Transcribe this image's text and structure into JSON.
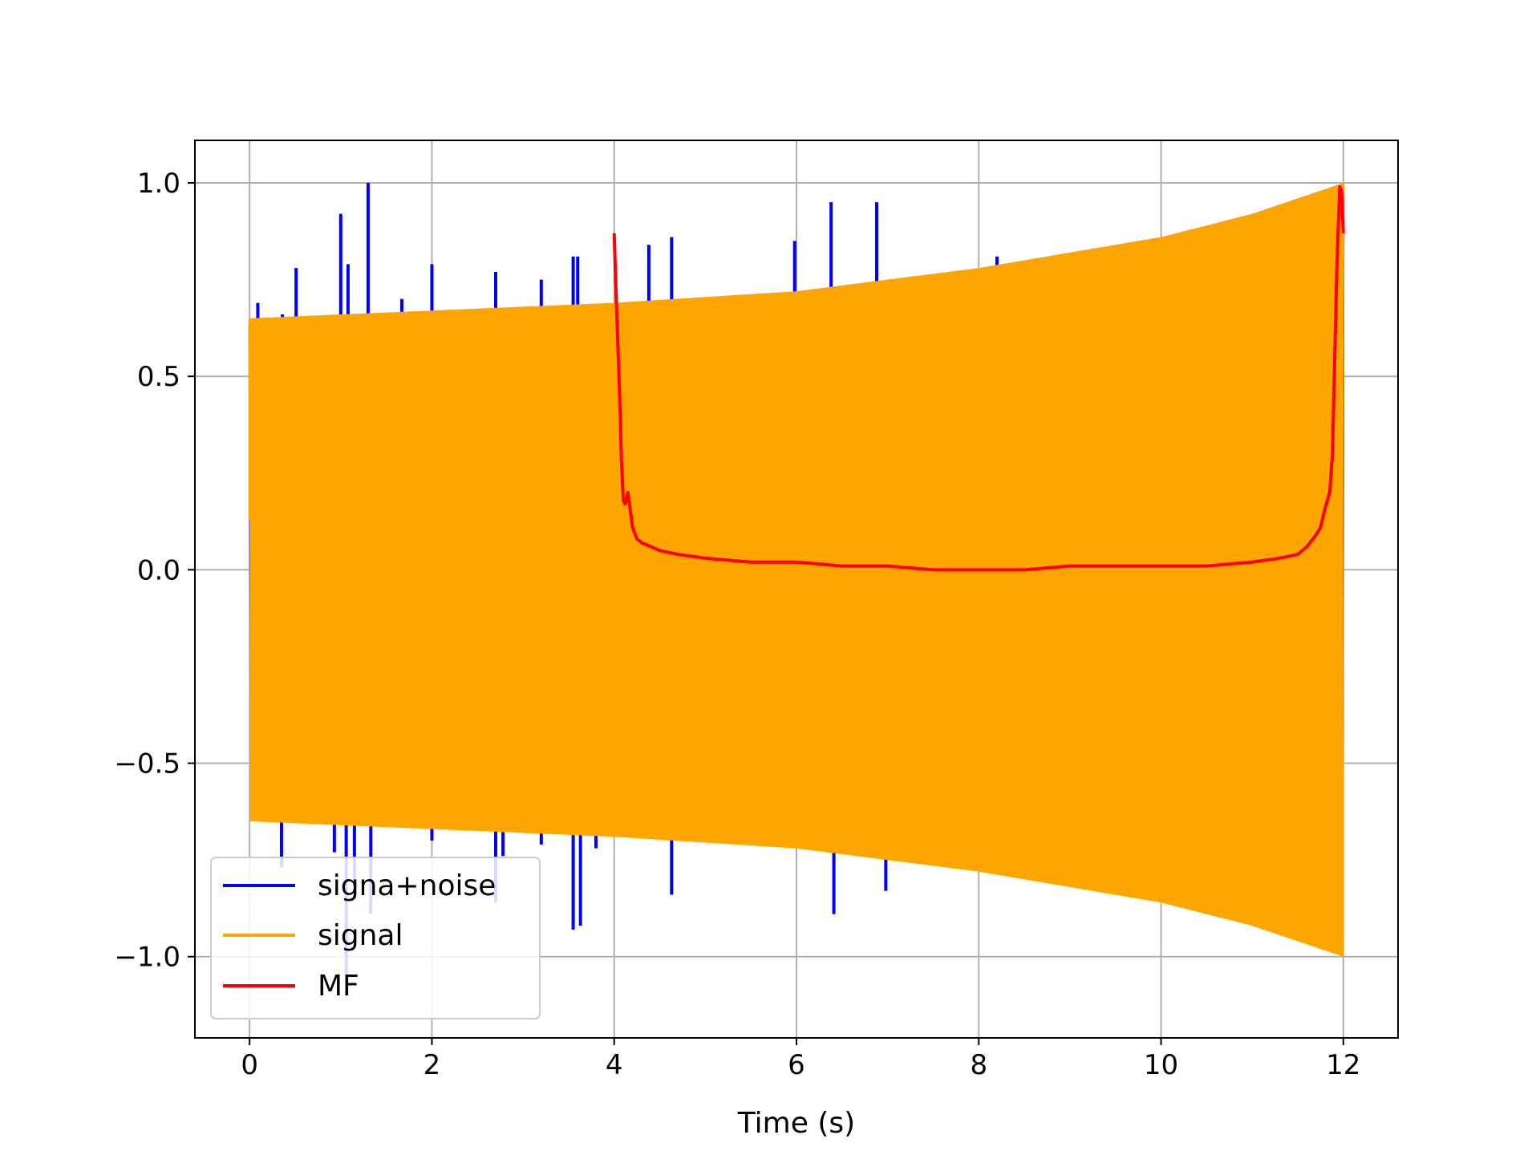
{
  "chart_data": {
    "type": "line",
    "title": "",
    "xlabel": "Time (s)",
    "ylabel": "",
    "xlim": [
      -0.6,
      12.6
    ],
    "ylim": [
      -1.21,
      1.11
    ],
    "grid": true,
    "legend_position": "lower-left",
    "x_ticks": [
      {
        "value": 0,
        "label": "0"
      },
      {
        "value": 2,
        "label": "2"
      },
      {
        "value": 4,
        "label": "4"
      },
      {
        "value": 6,
        "label": "6"
      },
      {
        "value": 8,
        "label": "8"
      },
      {
        "value": 10,
        "label": "10"
      },
      {
        "value": 12,
        "label": "12"
      }
    ],
    "y_ticks": [
      {
        "value": 1.0,
        "label": "1.0"
      },
      {
        "value": 0.5,
        "label": "0.5"
      },
      {
        "value": 0.0,
        "label": "0.0"
      },
      {
        "value": -0.5,
        "label": "−0.5"
      },
      {
        "value": -1.0,
        "label": "−1.0"
      }
    ],
    "series": [
      {
        "name": "signa+noise",
        "color": "#0000ff",
        "kind": "noisy_chirp",
        "x_range": [
          0,
          12
        ],
        "envelope": {
          "t": [
            0,
            2,
            4,
            6,
            8,
            10,
            11,
            12
          ],
          "amp": [
            0.65,
            0.67,
            0.69,
            0.72,
            0.78,
            0.86,
            0.92,
            1.0
          ]
        },
        "spikes": [
          {
            "x": 0.09,
            "y": 0.69
          },
          {
            "x": 0.36,
            "y": 0.66
          },
          {
            "x": 0.51,
            "y": 0.78
          },
          {
            "x": 0.35,
            "y": -0.77
          },
          {
            "x": 0.93,
            "y": -0.73
          },
          {
            "x": 1.0,
            "y": 0.92
          },
          {
            "x": 1.08,
            "y": 0.79
          },
          {
            "x": 1.06,
            "y": -1.05
          },
          {
            "x": 1.15,
            "y": -0.85
          },
          {
            "x": 1.3,
            "y": 1.0
          },
          {
            "x": 1.33,
            "y": -0.89
          },
          {
            "x": 1.67,
            "y": 0.7
          },
          {
            "x": 2.0,
            "y": 0.79
          },
          {
            "x": 2.0,
            "y": -0.7
          },
          {
            "x": 2.7,
            "y": 0.77
          },
          {
            "x": 2.7,
            "y": -0.86
          },
          {
            "x": 2.78,
            "y": -0.74
          },
          {
            "x": 3.2,
            "y": 0.75
          },
          {
            "x": 3.2,
            "y": -0.71
          },
          {
            "x": 3.55,
            "y": 0.81
          },
          {
            "x": 3.6,
            "y": 0.81
          },
          {
            "x": 3.55,
            "y": -0.93
          },
          {
            "x": 3.63,
            "y": -0.92
          },
          {
            "x": 3.8,
            "y": -0.72
          },
          {
            "x": 4.38,
            "y": 0.84
          },
          {
            "x": 4.63,
            "y": 0.86
          },
          {
            "x": 4.63,
            "y": -0.84
          },
          {
            "x": 5.98,
            "y": 0.85
          },
          {
            "x": 6.38,
            "y": 0.95
          },
          {
            "x": 6.41,
            "y": -0.89
          },
          {
            "x": 6.88,
            "y": 0.95
          },
          {
            "x": 6.98,
            "y": -0.83
          },
          {
            "x": 8.2,
            "y": 0.81
          }
        ]
      },
      {
        "name": "signal",
        "color": "#ffa500",
        "kind": "chirp_band",
        "x_range": [
          0,
          12
        ],
        "start_value": 0.13,
        "envelope": {
          "t": [
            0,
            2,
            4,
            6,
            8,
            10,
            11,
            12
          ],
          "amp": [
            0.65,
            0.67,
            0.69,
            0.72,
            0.78,
            0.86,
            0.92,
            1.0
          ]
        }
      },
      {
        "name": "MF",
        "color": "#ff0000",
        "kind": "line",
        "x": [
          4.0,
          4.03,
          4.06,
          4.08,
          4.1,
          4.12,
          4.15,
          4.2,
          4.25,
          4.3,
          4.4,
          4.5,
          4.7,
          5.0,
          5.5,
          6.0,
          6.5,
          7.0,
          7.5,
          8.0,
          8.5,
          9.0,
          9.5,
          10.0,
          10.5,
          11.0,
          11.3,
          11.5,
          11.6,
          11.7,
          11.75,
          11.8,
          11.85,
          11.88,
          11.9,
          11.93,
          11.96,
          11.98,
          12.0
        ],
        "y": [
          0.87,
          0.65,
          0.45,
          0.28,
          0.18,
          0.17,
          0.2,
          0.11,
          0.08,
          0.07,
          0.06,
          0.05,
          0.04,
          0.03,
          0.02,
          0.02,
          0.01,
          0.01,
          0.0,
          0.0,
          0.0,
          0.01,
          0.01,
          0.01,
          0.01,
          0.02,
          0.03,
          0.04,
          0.06,
          0.09,
          0.11,
          0.16,
          0.2,
          0.3,
          0.5,
          0.8,
          0.99,
          0.98,
          0.87
        ]
      }
    ]
  }
}
